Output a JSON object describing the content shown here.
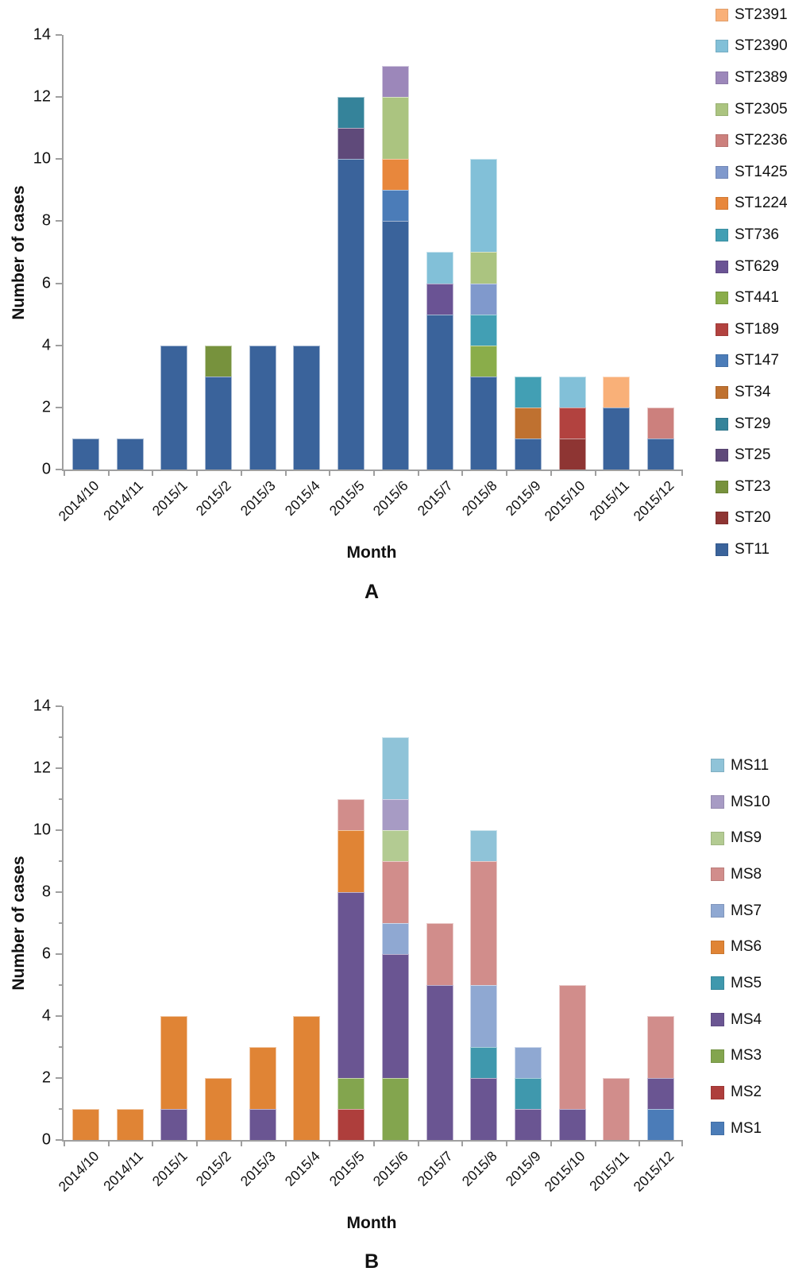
{
  "chart_data": [
    {
      "type": "bar",
      "stacked": true,
      "panel_label": "A",
      "xlabel": "Month",
      "ylabel": "Number of cases",
      "ylim": [
        0,
        14
      ],
      "yticks": [
        0,
        2,
        4,
        6,
        8,
        10,
        12,
        14
      ],
      "legend_position": "right",
      "legend_order": "reverse-of-stack (top legend entry = topmost stack series)",
      "categories": [
        "2014/10",
        "2014/11",
        "2015/1",
        "2015/2",
        "2015/3",
        "2015/4",
        "2015/5",
        "2015/6",
        "2015/7",
        "2015/8",
        "2015/9",
        "2015/10",
        "2015/11",
        "2015/12"
      ],
      "series": [
        {
          "name": "ST11",
          "color": "#3A639B",
          "values": [
            1,
            1,
            4,
            3,
            4,
            4,
            10,
            8,
            5,
            3,
            1,
            0,
            2,
            1
          ]
        },
        {
          "name": "ST20",
          "color": "#8E3533",
          "values": [
            0,
            0,
            0,
            0,
            0,
            0,
            0,
            0,
            0,
            0,
            0,
            1,
            0,
            0
          ]
        },
        {
          "name": "ST23",
          "color": "#77923D",
          "values": [
            0,
            0,
            0,
            1,
            0,
            0,
            0,
            0,
            0,
            0,
            0,
            0,
            0,
            0
          ]
        },
        {
          "name": "ST25",
          "color": "#5F4A7A",
          "values": [
            0,
            0,
            0,
            0,
            0,
            0,
            1,
            0,
            0,
            0,
            0,
            0,
            0,
            0
          ]
        },
        {
          "name": "ST29",
          "color": "#35839A",
          "values": [
            0,
            0,
            0,
            0,
            0,
            0,
            1,
            0,
            0,
            0,
            0,
            0,
            0,
            0
          ]
        },
        {
          "name": "ST34",
          "color": "#BF7130",
          "values": [
            0,
            0,
            0,
            0,
            0,
            0,
            0,
            0,
            0,
            0,
            1,
            0,
            0,
            0
          ]
        },
        {
          "name": "ST147",
          "color": "#4B7CB8",
          "values": [
            0,
            0,
            0,
            0,
            0,
            0,
            0,
            1,
            0,
            0,
            0,
            0,
            0,
            0
          ]
        },
        {
          "name": "ST189",
          "color": "#B2423F",
          "values": [
            0,
            0,
            0,
            0,
            0,
            0,
            0,
            0,
            0,
            0,
            0,
            1,
            0,
            0
          ]
        },
        {
          "name": "ST441",
          "color": "#8AAD4A",
          "values": [
            0,
            0,
            0,
            0,
            0,
            0,
            0,
            0,
            0,
            1,
            0,
            0,
            0,
            0
          ]
        },
        {
          "name": "ST629",
          "color": "#6A5394",
          "values": [
            0,
            0,
            0,
            0,
            0,
            0,
            0,
            0,
            1,
            0,
            0,
            0,
            0,
            0
          ]
        },
        {
          "name": "ST736",
          "color": "#429FB4",
          "values": [
            0,
            0,
            0,
            0,
            0,
            0,
            0,
            0,
            0,
            1,
            1,
            0,
            0,
            0
          ]
        },
        {
          "name": "ST1224",
          "color": "#E8873C",
          "values": [
            0,
            0,
            0,
            0,
            0,
            0,
            0,
            1,
            0,
            0,
            0,
            0,
            0,
            0
          ]
        },
        {
          "name": "ST1425",
          "color": "#8099CC",
          "values": [
            0,
            0,
            0,
            0,
            0,
            0,
            0,
            0,
            0,
            1,
            0,
            0,
            0,
            0
          ]
        },
        {
          "name": "ST2236",
          "color": "#CC807D",
          "values": [
            0,
            0,
            0,
            0,
            0,
            0,
            0,
            0,
            0,
            0,
            0,
            0,
            0,
            1
          ]
        },
        {
          "name": "ST2305",
          "color": "#ABC480",
          "values": [
            0,
            0,
            0,
            0,
            0,
            0,
            0,
            2,
            0,
            1,
            0,
            0,
            0,
            0
          ]
        },
        {
          "name": "ST2389",
          "color": "#9C87BA",
          "values": [
            0,
            0,
            0,
            0,
            0,
            0,
            0,
            1,
            0,
            0,
            0,
            0,
            0,
            0
          ]
        },
        {
          "name": "ST2390",
          "color": "#82C0D8",
          "values": [
            0,
            0,
            0,
            0,
            0,
            0,
            0,
            0,
            1,
            3,
            0,
            1,
            0,
            0
          ]
        },
        {
          "name": "ST2391",
          "color": "#F9B078",
          "values": [
            0,
            0,
            0,
            0,
            0,
            0,
            0,
            0,
            0,
            0,
            0,
            0,
            1,
            0
          ]
        }
      ]
    },
    {
      "type": "bar",
      "stacked": true,
      "panel_label": "B",
      "xlabel": "Month",
      "ylabel": "Number of cases",
      "ylim": [
        0,
        14
      ],
      "yticks": [
        0,
        2,
        4,
        6,
        8,
        10,
        12,
        14
      ],
      "minor_yticks": [
        1,
        3,
        5,
        7,
        9,
        11,
        13
      ],
      "legend_position": "right",
      "legend_order": "reverse-of-stack (top legend entry = topmost stack series)",
      "categories": [
        "2014/10",
        "2014/11",
        "2015/1",
        "2015/2",
        "2015/3",
        "2015/4",
        "2015/5",
        "2015/6",
        "2015/7",
        "2015/8",
        "2015/9",
        "2015/10",
        "2015/11",
        "2015/12"
      ],
      "series": [
        {
          "name": "MS1",
          "color": "#4B7CB8",
          "values": [
            0,
            0,
            0,
            0,
            0,
            0,
            0,
            0,
            0,
            0,
            0,
            0,
            0,
            1
          ]
        },
        {
          "name": "MS2",
          "color": "#AE3E3C",
          "values": [
            0,
            0,
            0,
            0,
            0,
            0,
            1,
            0,
            0,
            0,
            0,
            0,
            0,
            0
          ]
        },
        {
          "name": "MS3",
          "color": "#83A54E",
          "values": [
            0,
            0,
            0,
            0,
            0,
            0,
            1,
            2,
            0,
            0,
            0,
            0,
            0,
            0
          ]
        },
        {
          "name": "MS4",
          "color": "#6A5592",
          "values": [
            0,
            0,
            1,
            0,
            1,
            0,
            6,
            4,
            5,
            2,
            1,
            1,
            0,
            1
          ]
        },
        {
          "name": "MS5",
          "color": "#3F98AD",
          "values": [
            0,
            0,
            0,
            0,
            0,
            0,
            0,
            0,
            0,
            1,
            1,
            0,
            0,
            0
          ]
        },
        {
          "name": "MS6",
          "color": "#E08435",
          "values": [
            1,
            1,
            3,
            2,
            2,
            4,
            2,
            0,
            0,
            0,
            0,
            0,
            0,
            0
          ]
        },
        {
          "name": "MS7",
          "color": "#8FA8D2",
          "values": [
            0,
            0,
            0,
            0,
            0,
            0,
            0,
            1,
            0,
            2,
            1,
            0,
            0,
            0
          ]
        },
        {
          "name": "MS8",
          "color": "#D18D8B",
          "values": [
            0,
            0,
            0,
            0,
            0,
            0,
            1,
            2,
            2,
            4,
            0,
            4,
            2,
            2
          ]
        },
        {
          "name": "MS9",
          "color": "#B3CB92",
          "values": [
            0,
            0,
            0,
            0,
            0,
            0,
            0,
            1,
            0,
            0,
            0,
            0,
            0,
            0
          ]
        },
        {
          "name": "MS10",
          "color": "#A79BC4",
          "values": [
            0,
            0,
            0,
            0,
            0,
            0,
            0,
            1,
            0,
            0,
            0,
            0,
            0,
            0
          ]
        },
        {
          "name": "MS11",
          "color": "#8FC3D8",
          "values": [
            0,
            0,
            0,
            0,
            0,
            0,
            0,
            2,
            0,
            1,
            0,
            0,
            0,
            0
          ]
        }
      ]
    }
  ]
}
